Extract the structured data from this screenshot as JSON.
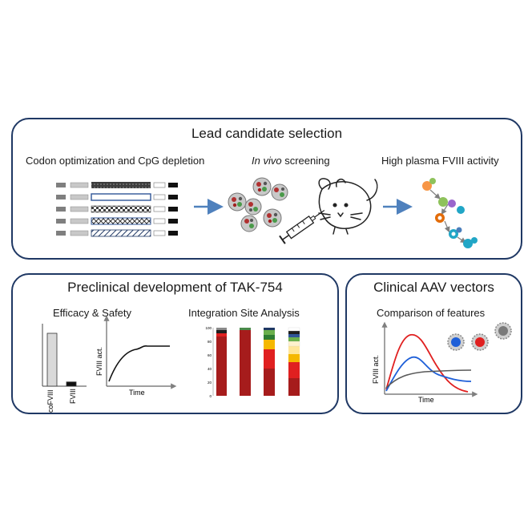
{
  "lead": {
    "title": "Lead candidate selection",
    "codon": "Codon optimization and CpG depletion",
    "invivo_em": "In vivo",
    "invivo_rest": " screening",
    "plasma": "High plasma FVIII  activity"
  },
  "preclinical": {
    "title": "Preclinical development  of TAK-754",
    "efficacy": "Efficacy & Safety",
    "integration": "Integration  Site Analysis",
    "bar_chart": {
      "categories": [
        "coFVIII",
        "FVIII"
      ],
      "values": [
        1.0,
        0.08
      ]
    },
    "curve": {
      "ylabel": "FVIII act.",
      "xlabel": "Time"
    },
    "isa": {
      "ticks": [
        "100",
        "80",
        "60",
        "40",
        "20",
        "0"
      ]
    }
  },
  "clinical": {
    "title": "Clinical AAV  vectors",
    "comparison": "Comparison of features",
    "ylabel": "FVIII act.",
    "xlabel": "Time"
  },
  "colors": {
    "border": "#1f3864",
    "arrow": "#4f81bd",
    "dark_red": "#a61c1c",
    "red": "#e02020",
    "blue": "#1e5fd8",
    "grey": "#595959"
  }
}
